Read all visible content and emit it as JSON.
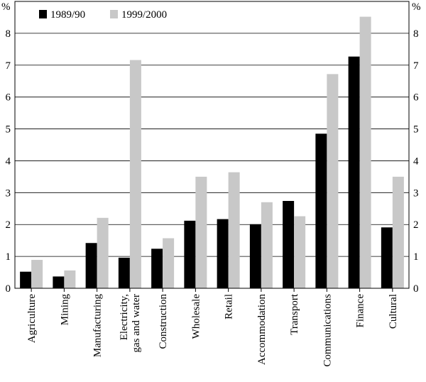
{
  "chart_data": {
    "type": "bar",
    "title": "",
    "xlabel": "",
    "ylabel": "%",
    "ylabel_right": "%",
    "ylim": [
      0,
      9
    ],
    "yticks": [
      0,
      1,
      2,
      3,
      4,
      5,
      6,
      7,
      8
    ],
    "grid": true,
    "legend_position": "top-left",
    "categories": [
      [
        "Agriculture"
      ],
      [
        "Mining"
      ],
      [
        "Manufacturing"
      ],
      [
        "Electricity,",
        "gas and water"
      ],
      [
        "Construction"
      ],
      [
        "Wholesale"
      ],
      [
        "Retail"
      ],
      [
        "Accommodation"
      ],
      [
        "Transport"
      ],
      [
        "Communications"
      ],
      [
        "Finance"
      ],
      [
        "Cultural"
      ]
    ],
    "series": [
      {
        "name": "1989/90",
        "color": "#000000",
        "values": [
          0.52,
          0.37,
          1.42,
          0.96,
          1.24,
          2.12,
          2.17,
          2.01,
          2.74,
          4.85,
          7.27,
          1.91
        ]
      },
      {
        "name": "1999/2000",
        "color": "#c8c8c8",
        "values": [
          0.89,
          0.56,
          2.21,
          7.16,
          1.57,
          3.5,
          3.64,
          2.7,
          2.26,
          6.72,
          8.52,
          3.5
        ]
      }
    ]
  }
}
